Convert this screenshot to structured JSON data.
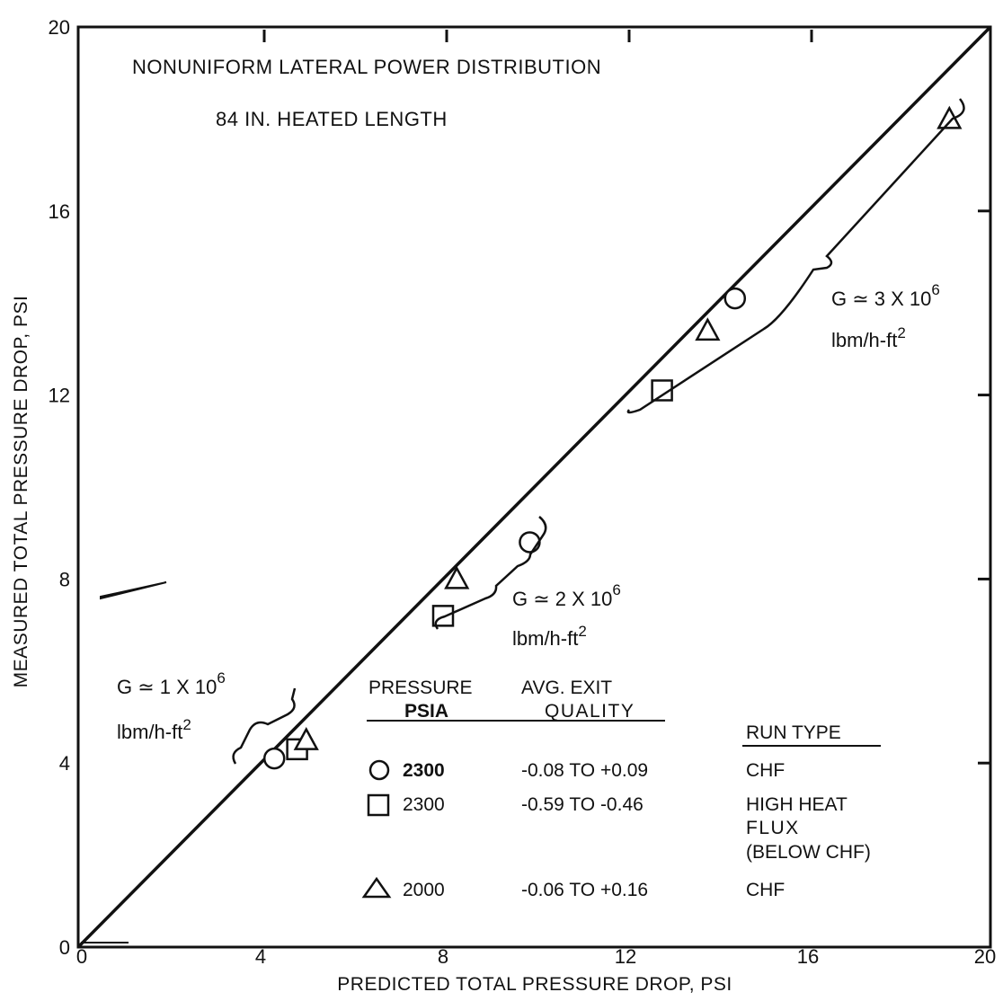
{
  "chart_data": {
    "type": "scatter",
    "title_line1": "NONUNIFORM LATERAL POWER DISTRIBUTION",
    "title_line2": "84 IN. HEATED LENGTH",
    "xlabel": "PREDICTED TOTAL PRESSURE DROP, PSI",
    "ylabel": "MEASURED TOTAL PRESSURE DROP, PSI",
    "xlim": [
      0,
      20
    ],
    "ylim": [
      0,
      20
    ],
    "xticks": [
      "0",
      "4",
      "8",
      "12",
      "16",
      "20"
    ],
    "yticks": [
      "0",
      "4",
      "8",
      "12",
      "16",
      "20"
    ],
    "grid": false,
    "reference_line": "y = x",
    "series": [
      {
        "marker": "circle",
        "pressure_psia": "2300",
        "exit_quality": "-0.08 TO +0.09",
        "run_type": "CHF",
        "points": [
          [
            4.3,
            4.1
          ],
          [
            9.9,
            8.8
          ],
          [
            14.4,
            14.1
          ]
        ]
      },
      {
        "marker": "square",
        "pressure_psia": "2300",
        "exit_quality": "-0.59 TO -0.46",
        "run_type": "HIGH HEAT FLUX (BELOW CHF)",
        "points": [
          [
            4.8,
            4.3
          ],
          [
            8.0,
            7.2
          ],
          [
            12.8,
            12.1
          ]
        ]
      },
      {
        "marker": "triangle",
        "pressure_psia": "2000",
        "exit_quality": "-0.06 TO +0.16",
        "run_type": "CHF",
        "points": [
          [
            5.0,
            4.5
          ],
          [
            8.3,
            8.0
          ],
          [
            13.8,
            13.4
          ],
          [
            19.1,
            18.0
          ]
        ]
      }
    ],
    "annotations": {
      "g1_line1": "G ≃ 1 X 10",
      "g1_exp": "6",
      "g1_line2": "lbm/h-ft",
      "g1_sq": "2",
      "g2_line1": "G ≃ 2 X 10",
      "g2_exp": "6",
      "g2_line2": "lbm/h-ft",
      "g2_sq": "2",
      "g3_line1": "G ≃ 3 X 10",
      "g3_exp": "6",
      "g3_line2": "lbm/h-ft",
      "g3_sq": "2"
    },
    "legend": {
      "col1_header_line1": "PRESSURE",
      "col1_header_line2": "PSIA",
      "col2_header_line1": "AVG. EXIT",
      "col2_header_line2": "QUALITY",
      "col3_header": "RUN TYPE",
      "rows": [
        {
          "pressure": "2300",
          "quality": "-0.08 TO +0.09",
          "run_type_lines": [
            "CHF"
          ]
        },
        {
          "pressure": "2300",
          "quality": "-0.59 TO -0.46",
          "run_type_lines": [
            "HIGH HEAT",
            "FLUX",
            "(BELOW CHF)"
          ]
        },
        {
          "pressure": "2000",
          "quality": "-0.06 TO +0.16",
          "run_type_lines": [
            "CHF"
          ]
        }
      ]
    }
  }
}
